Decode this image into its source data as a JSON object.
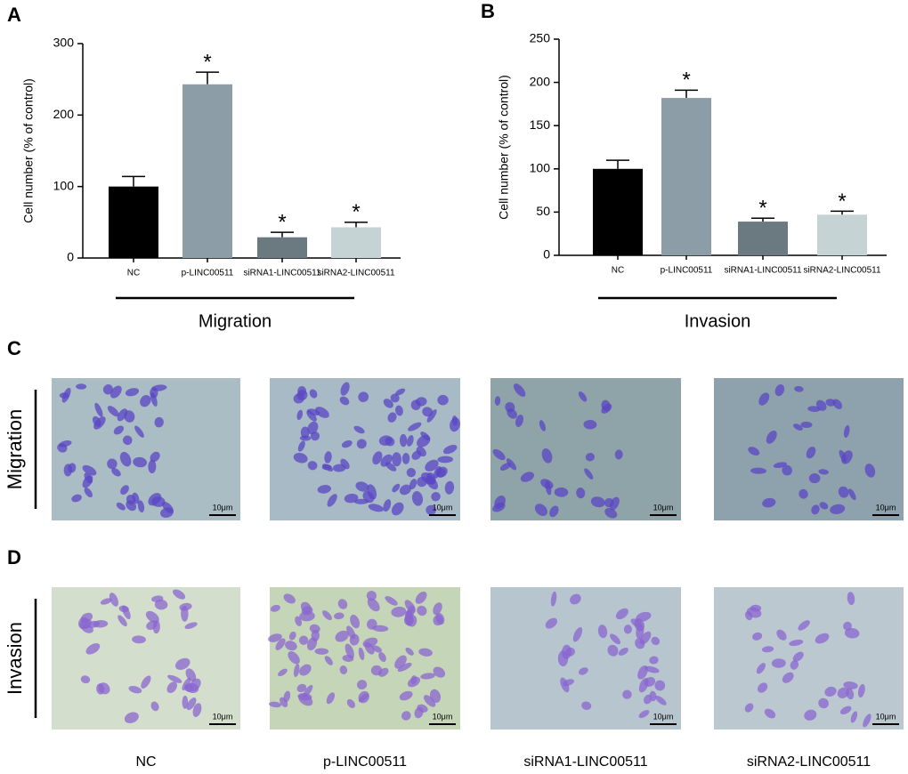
{
  "chart_data": [
    {
      "type": "bar",
      "panel": "A",
      "y_label": "Cell number (% of control)",
      "categories": [
        "NC",
        "p-LINC00511",
        "siRNA1-LINC00511",
        "siRNA2-LINC00511"
      ],
      "values": [
        100,
        243,
        29,
        43
      ],
      "errors": [
        14,
        17,
        7,
        7
      ],
      "significance": [
        null,
        "*",
        "*",
        "*"
      ],
      "colors": [
        "#000000",
        "#8d9da7",
        "#6b7a80",
        "#c6d3d5"
      ],
      "ylim": [
        0,
        300
      ],
      "yticks": [
        0,
        100,
        200,
        300
      ],
      "group_label": "Migration"
    },
    {
      "type": "bar",
      "panel": "B",
      "y_label": "Cell number (% of control)",
      "categories": [
        "NC",
        "p-LINC00511",
        "siRNA1-LINC00511",
        "siRNA2-LINC00511"
      ],
      "values": [
        100,
        182,
        39,
        47
      ],
      "errors": [
        10,
        9,
        4,
        4
      ],
      "significance": [
        null,
        "*",
        "*",
        "*"
      ],
      "colors": [
        "#000000",
        "#8d9da7",
        "#6b7a80",
        "#c6d3d5"
      ],
      "ylim": [
        0,
        250
      ],
      "yticks": [
        0,
        50,
        100,
        150,
        200,
        250
      ],
      "group_label": "Invasion"
    }
  ],
  "images": {
    "rows": [
      {
        "panel": "C",
        "label": "Migration"
      },
      {
        "panel": "D",
        "label": "Invasion"
      }
    ],
    "columns": [
      "NC",
      "p-LINC00511",
      "siRNA1-LINC00511",
      "siRNA2-LINC00511"
    ],
    "scale_bar": "10μm"
  }
}
